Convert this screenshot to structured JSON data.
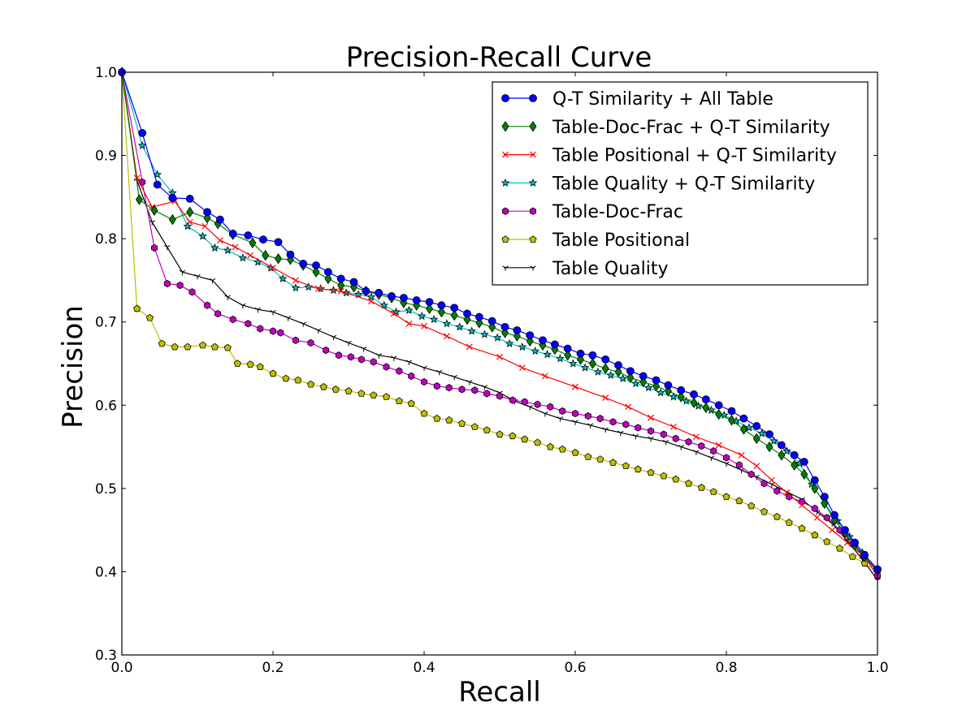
{
  "chart_data": {
    "type": "line",
    "title": "Precision-Recall Curve",
    "xlabel": "Recall",
    "ylabel": "Precision",
    "xlim": [
      0.0,
      1.0
    ],
    "ylim": [
      0.3,
      1.0
    ],
    "xticks": [
      "0.0",
      "0.2",
      "0.4",
      "0.6",
      "0.8",
      "1.0"
    ],
    "yticks": [
      "0.3",
      "0.4",
      "0.5",
      "0.6",
      "0.7",
      "0.8",
      "0.9",
      "1.0"
    ],
    "grid": false,
    "legend_position": "top-right",
    "series": [
      {
        "name": "Q-T Similarity + All Table",
        "color": "#0000ff",
        "marker": "circle",
        "x": [
          0.0,
          0.027,
          0.047,
          0.067,
          0.09,
          0.113,
          0.13,
          0.147,
          0.167,
          0.187,
          0.207,
          0.223,
          0.24,
          0.257,
          0.273,
          0.29,
          0.307,
          0.323,
          0.34,
          0.357,
          0.373,
          0.39,
          0.407,
          0.423,
          0.44,
          0.457,
          0.473,
          0.49,
          0.507,
          0.523,
          0.54,
          0.557,
          0.573,
          0.59,
          0.607,
          0.623,
          0.64,
          0.657,
          0.673,
          0.69,
          0.707,
          0.723,
          0.74,
          0.757,
          0.773,
          0.79,
          0.807,
          0.823,
          0.84,
          0.857,
          0.873,
          0.89,
          0.903,
          0.917,
          0.93,
          0.943,
          0.957,
          0.97,
          0.983,
          1.0
        ],
        "y": [
          1.0,
          0.927,
          0.865,
          0.849,
          0.848,
          0.832,
          0.823,
          0.806,
          0.804,
          0.799,
          0.796,
          0.781,
          0.77,
          0.768,
          0.76,
          0.752,
          0.748,
          0.737,
          0.735,
          0.731,
          0.729,
          0.726,
          0.724,
          0.72,
          0.717,
          0.71,
          0.706,
          0.701,
          0.694,
          0.69,
          0.684,
          0.678,
          0.673,
          0.668,
          0.662,
          0.66,
          0.655,
          0.648,
          0.641,
          0.635,
          0.63,
          0.624,
          0.618,
          0.613,
          0.607,
          0.6,
          0.593,
          0.584,
          0.575,
          0.565,
          0.552,
          0.54,
          0.532,
          0.51,
          0.49,
          0.468,
          0.45,
          0.435,
          0.42,
          0.403
        ]
      },
      {
        "name": "Table-Doc-Frac + Q-T Similarity",
        "color": "#008000",
        "marker": "diamond",
        "x": [
          0.0,
          0.023,
          0.043,
          0.067,
          0.09,
          0.113,
          0.127,
          0.147,
          0.173,
          0.19,
          0.207,
          0.223,
          0.24,
          0.257,
          0.273,
          0.29,
          0.307,
          0.323,
          0.34,
          0.357,
          0.373,
          0.39,
          0.407,
          0.423,
          0.44,
          0.457,
          0.473,
          0.49,
          0.507,
          0.523,
          0.54,
          0.557,
          0.573,
          0.59,
          0.607,
          0.623,
          0.64,
          0.657,
          0.673,
          0.69,
          0.707,
          0.723,
          0.74,
          0.757,
          0.773,
          0.79,
          0.807,
          0.823,
          0.84,
          0.857,
          0.873,
          0.89,
          0.903,
          0.917,
          0.93,
          0.943,
          0.957,
          0.97,
          0.983,
          1.0
        ],
        "y": [
          1.0,
          0.847,
          0.834,
          0.823,
          0.832,
          0.825,
          0.818,
          0.805,
          0.795,
          0.78,
          0.776,
          0.775,
          0.768,
          0.76,
          0.752,
          0.744,
          0.742,
          0.737,
          0.733,
          0.729,
          0.723,
          0.72,
          0.716,
          0.712,
          0.708,
          0.703,
          0.699,
          0.694,
          0.687,
          0.683,
          0.677,
          0.672,
          0.667,
          0.66,
          0.655,
          0.65,
          0.644,
          0.64,
          0.633,
          0.628,
          0.623,
          0.617,
          0.61,
          0.603,
          0.597,
          0.589,
          0.582,
          0.571,
          0.56,
          0.55,
          0.54,
          0.528,
          0.517,
          0.5,
          0.482,
          0.462,
          0.447,
          0.432,
          0.418,
          0.402
        ]
      },
      {
        "name": "Table Positional + Q-T Similarity",
        "color": "#ff0000",
        "marker": "x",
        "x": [
          0.0,
          0.02,
          0.04,
          0.07,
          0.09,
          0.11,
          0.13,
          0.15,
          0.17,
          0.2,
          0.23,
          0.26,
          0.29,
          0.33,
          0.36,
          0.38,
          0.4,
          0.43,
          0.46,
          0.5,
          0.53,
          0.56,
          0.6,
          0.64,
          0.67,
          0.7,
          0.73,
          0.76,
          0.79,
          0.82,
          0.84,
          0.86,
          0.88,
          0.9,
          0.92,
          0.94,
          0.96,
          0.98,
          1.0
        ],
        "y": [
          1.0,
          0.873,
          0.838,
          0.845,
          0.82,
          0.815,
          0.798,
          0.79,
          0.78,
          0.765,
          0.75,
          0.74,
          0.737,
          0.725,
          0.71,
          0.698,
          0.695,
          0.683,
          0.67,
          0.658,
          0.645,
          0.635,
          0.622,
          0.609,
          0.598,
          0.585,
          0.574,
          0.562,
          0.552,
          0.54,
          0.527,
          0.51,
          0.495,
          0.48,
          0.465,
          0.45,
          0.435,
          0.42,
          0.4
        ]
      },
      {
        "name": "Table Quality + Q-T Similarity",
        "color": "#00bfbf",
        "marker": "star",
        "x": [
          0.0,
          0.027,
          0.047,
          0.067,
          0.087,
          0.107,
          0.123,
          0.14,
          0.16,
          0.18,
          0.197,
          0.213,
          0.23,
          0.247,
          0.263,
          0.28,
          0.297,
          0.313,
          0.33,
          0.347,
          0.363,
          0.38,
          0.397,
          0.413,
          0.43,
          0.447,
          0.463,
          0.48,
          0.497,
          0.513,
          0.53,
          0.547,
          0.563,
          0.58,
          0.597,
          0.613,
          0.63,
          0.647,
          0.663,
          0.68,
          0.697,
          0.713,
          0.73,
          0.747,
          0.763,
          0.78,
          0.797,
          0.813,
          0.83,
          0.847,
          0.863,
          0.88,
          0.897,
          0.913,
          0.93,
          0.947,
          0.963,
          0.98,
          1.0
        ],
        "y": [
          1.0,
          0.912,
          0.877,
          0.855,
          0.815,
          0.803,
          0.789,
          0.786,
          0.777,
          0.772,
          0.765,
          0.752,
          0.741,
          0.742,
          0.74,
          0.738,
          0.735,
          0.733,
          0.73,
          0.72,
          0.712,
          0.714,
          0.707,
          0.703,
          0.698,
          0.694,
          0.689,
          0.685,
          0.681,
          0.674,
          0.67,
          0.665,
          0.661,
          0.656,
          0.65,
          0.645,
          0.64,
          0.636,
          0.632,
          0.626,
          0.621,
          0.615,
          0.61,
          0.605,
          0.599,
          0.594,
          0.588,
          0.581,
          0.573,
          0.566,
          0.557,
          0.545,
          0.53,
          0.505,
          0.482,
          0.461,
          0.442,
          0.423,
          0.402
        ]
      },
      {
        "name": "Table-Doc-Frac",
        "color": "#bf00bf",
        "marker": "hexagon",
        "x": [
          0.0,
          0.027,
          0.043,
          0.06,
          0.077,
          0.093,
          0.113,
          0.127,
          0.147,
          0.167,
          0.183,
          0.2,
          0.21,
          0.23,
          0.25,
          0.27,
          0.287,
          0.303,
          0.317,
          0.333,
          0.35,
          0.367,
          0.383,
          0.4,
          0.417,
          0.433,
          0.45,
          0.467,
          0.483,
          0.5,
          0.517,
          0.533,
          0.55,
          0.567,
          0.583,
          0.6,
          0.617,
          0.633,
          0.65,
          0.667,
          0.683,
          0.7,
          0.717,
          0.733,
          0.75,
          0.767,
          0.783,
          0.8,
          0.817,
          0.833,
          0.85,
          0.867,
          0.883,
          0.9,
          0.917,
          0.933,
          0.95,
          0.967,
          0.983,
          1.0
        ],
        "y": [
          1.0,
          0.868,
          0.789,
          0.746,
          0.744,
          0.736,
          0.72,
          0.71,
          0.703,
          0.698,
          0.692,
          0.689,
          0.687,
          0.678,
          0.675,
          0.666,
          0.66,
          0.658,
          0.655,
          0.652,
          0.646,
          0.641,
          0.635,
          0.628,
          0.623,
          0.621,
          0.619,
          0.618,
          0.614,
          0.611,
          0.606,
          0.604,
          0.601,
          0.598,
          0.593,
          0.59,
          0.587,
          0.584,
          0.58,
          0.577,
          0.573,
          0.569,
          0.565,
          0.56,
          0.556,
          0.551,
          0.545,
          0.537,
          0.528,
          0.517,
          0.506,
          0.497,
          0.49,
          0.484,
          0.476,
          0.465,
          0.45,
          0.433,
          0.418,
          0.395
        ]
      },
      {
        "name": "Table Positional",
        "color": "#bfbf00",
        "marker": "pentagon",
        "x": [
          0.0,
          0.02,
          0.037,
          0.053,
          0.07,
          0.087,
          0.107,
          0.123,
          0.14,
          0.153,
          0.17,
          0.183,
          0.2,
          0.217,
          0.233,
          0.25,
          0.267,
          0.283,
          0.3,
          0.317,
          0.333,
          0.35,
          0.367,
          0.383,
          0.4,
          0.417,
          0.433,
          0.45,
          0.467,
          0.483,
          0.5,
          0.517,
          0.533,
          0.55,
          0.567,
          0.583,
          0.6,
          0.617,
          0.633,
          0.65,
          0.667,
          0.683,
          0.7,
          0.717,
          0.733,
          0.75,
          0.767,
          0.783,
          0.8,
          0.817,
          0.833,
          0.85,
          0.867,
          0.883,
          0.9,
          0.917,
          0.933,
          0.95,
          0.967,
          0.983,
          1.0
        ],
        "y": [
          1.0,
          0.716,
          0.705,
          0.674,
          0.67,
          0.67,
          0.672,
          0.67,
          0.669,
          0.65,
          0.649,
          0.646,
          0.638,
          0.632,
          0.63,
          0.625,
          0.622,
          0.619,
          0.617,
          0.614,
          0.612,
          0.61,
          0.605,
          0.602,
          0.59,
          0.584,
          0.582,
          0.578,
          0.574,
          0.57,
          0.565,
          0.563,
          0.559,
          0.555,
          0.55,
          0.547,
          0.543,
          0.538,
          0.535,
          0.531,
          0.527,
          0.523,
          0.519,
          0.515,
          0.511,
          0.506,
          0.501,
          0.496,
          0.49,
          0.485,
          0.479,
          0.472,
          0.466,
          0.459,
          0.452,
          0.444,
          0.436,
          0.428,
          0.418,
          0.41,
          0.4
        ]
      },
      {
        "name": "Table Quality",
        "color": "#000000",
        "marker": "tri_down",
        "x": [
          0.0,
          0.02,
          0.04,
          0.06,
          0.08,
          0.1,
          0.12,
          0.14,
          0.16,
          0.18,
          0.2,
          0.22,
          0.24,
          0.26,
          0.28,
          0.3,
          0.32,
          0.34,
          0.36,
          0.38,
          0.4,
          0.42,
          0.44,
          0.46,
          0.48,
          0.5,
          0.52,
          0.54,
          0.56,
          0.58,
          0.6,
          0.62,
          0.64,
          0.66,
          0.68,
          0.7,
          0.72,
          0.74,
          0.76,
          0.78,
          0.8,
          0.82,
          0.84,
          0.86,
          0.88,
          0.9,
          0.92,
          0.94,
          0.96,
          0.98,
          1.0
        ],
        "y": [
          1.0,
          0.87,
          0.82,
          0.79,
          0.76,
          0.755,
          0.75,
          0.73,
          0.72,
          0.715,
          0.712,
          0.705,
          0.698,
          0.69,
          0.682,
          0.675,
          0.668,
          0.66,
          0.657,
          0.652,
          0.645,
          0.64,
          0.634,
          0.628,
          0.622,
          0.615,
          0.605,
          0.598,
          0.59,
          0.584,
          0.58,
          0.576,
          0.571,
          0.567,
          0.563,
          0.56,
          0.556,
          0.55,
          0.544,
          0.537,
          0.53,
          0.522,
          0.514,
          0.505,
          0.496,
          0.487,
          0.472,
          0.458,
          0.437,
          0.415,
          0.39
        ]
      }
    ]
  }
}
